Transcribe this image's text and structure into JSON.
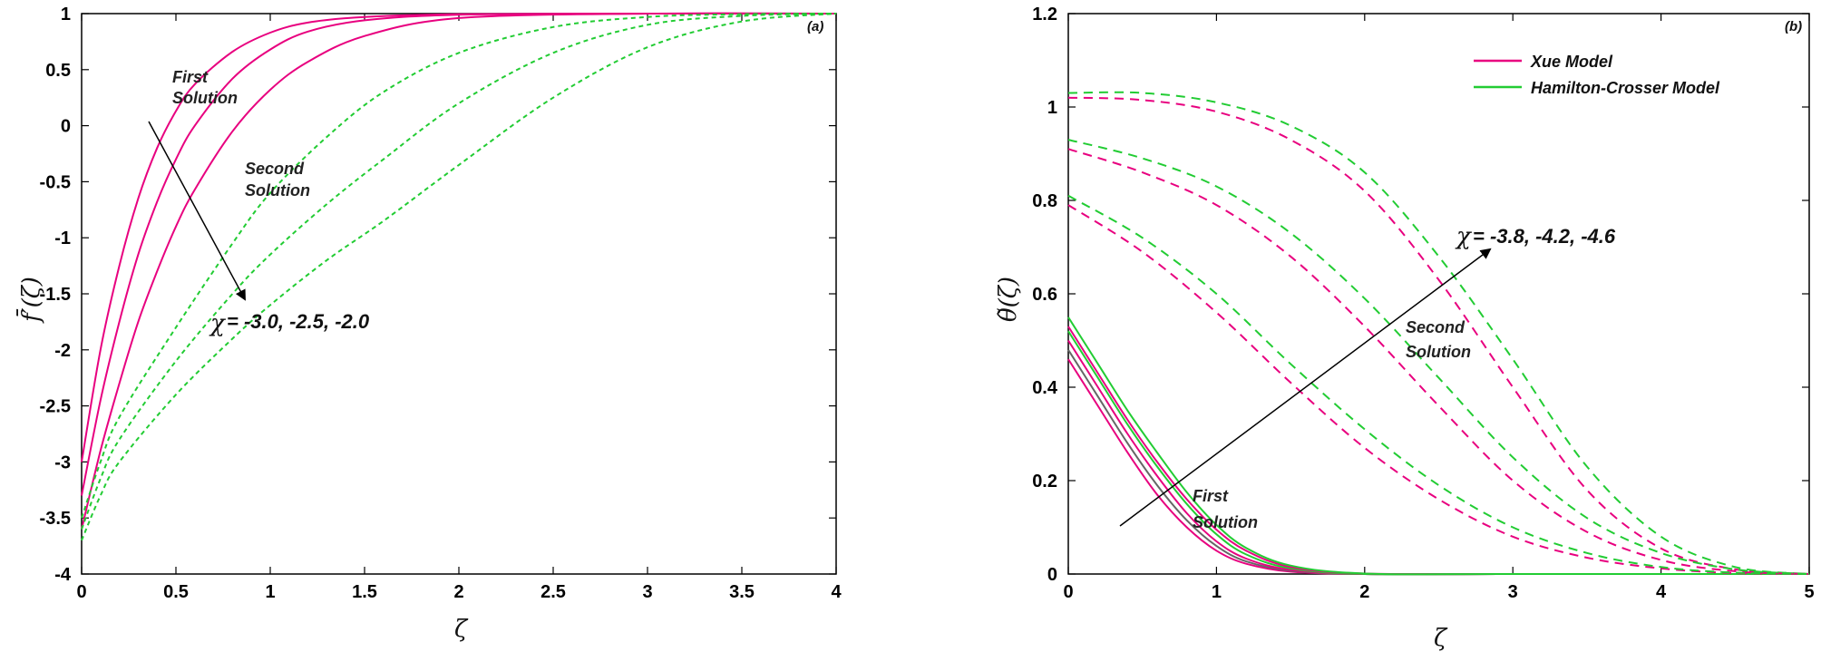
{
  "chart_data": [
    {
      "type": "line",
      "panel": "(a)",
      "xlabel": "ζ",
      "ylabel": "f̄′(ζ)",
      "xlim": [
        0,
        4
      ],
      "ylim": [
        -4,
        1
      ],
      "xticks": [
        "0",
        "0.5",
        "1",
        "1.5",
        "2",
        "2.5",
        "3",
        "3.5",
        "4"
      ],
      "yticks": [
        "-4",
        "-3.5",
        "-3",
        "-2.5",
        "-2",
        "-1.5",
        "-1",
        "-0.5",
        "0",
        "0.5",
        "1"
      ],
      "annotations": {
        "first_line1": "First",
        "first_line2": "Solution",
        "second_line1": "Second",
        "second_line2": "Solution",
        "chi_symbol": "χ",
        "chi_values": " = -3.0, -2.5, -2.0"
      },
      "colors": {
        "first": "#e8007f",
        "second": "#22cc33"
      },
      "series": [
        {
          "style": "solid",
          "color": "first",
          "x": [
            0,
            0.1,
            0.2,
            0.3,
            0.4,
            0.5,
            0.6,
            0.8,
            1.0,
            1.2,
            1.5,
            2.0,
            3.0,
            4.0
          ],
          "values": [
            -3.0,
            -2.0,
            -1.25,
            -0.65,
            -0.2,
            0.13,
            0.37,
            0.66,
            0.83,
            0.92,
            0.97,
            0.995,
            1.0,
            1.0
          ]
        },
        {
          "style": "solid",
          "color": "first",
          "x": [
            0,
            0.1,
            0.2,
            0.3,
            0.4,
            0.5,
            0.6,
            0.8,
            1.0,
            1.2,
            1.5,
            2.0,
            3.0,
            4.0
          ],
          "values": [
            -3.3,
            -2.45,
            -1.75,
            -1.15,
            -0.68,
            -0.3,
            0.0,
            0.42,
            0.68,
            0.84,
            0.94,
            0.99,
            1.0,
            1.0
          ]
        },
        {
          "style": "solid",
          "color": "first",
          "x": [
            0,
            0.1,
            0.2,
            0.3,
            0.4,
            0.5,
            0.6,
            0.8,
            1.0,
            1.2,
            1.5,
            2.0,
            3.0,
            4.0
          ],
          "values": [
            -3.6,
            -2.9,
            -2.3,
            -1.75,
            -1.3,
            -0.9,
            -0.57,
            -0.05,
            0.32,
            0.57,
            0.8,
            0.96,
            1.0,
            1.0
          ]
        },
        {
          "style": "dashed",
          "color": "second",
          "x": [
            0,
            0.1,
            0.2,
            0.5,
            0.8,
            1.0,
            1.3,
            1.6,
            2.0,
            2.5,
            3.0,
            3.5,
            4.0
          ],
          "values": [
            -3.5,
            -3.0,
            -2.6,
            -1.8,
            -1.05,
            -0.6,
            -0.1,
            0.3,
            0.65,
            0.88,
            0.97,
            0.995,
            1.0
          ]
        },
        {
          "style": "dashed",
          "color": "second",
          "x": [
            0,
            0.1,
            0.2,
            0.5,
            0.8,
            1.0,
            1.3,
            1.6,
            2.0,
            2.5,
            3.0,
            3.5,
            4.0
          ],
          "values": [
            -3.6,
            -3.15,
            -2.8,
            -2.1,
            -1.5,
            -1.15,
            -0.7,
            -0.3,
            0.2,
            0.65,
            0.9,
            0.98,
            1.0
          ]
        },
        {
          "style": "dashed",
          "color": "second",
          "x": [
            0,
            0.1,
            0.2,
            0.5,
            0.8,
            1.0,
            1.3,
            1.6,
            2.0,
            2.5,
            3.0,
            3.5,
            4.0
          ],
          "values": [
            -3.7,
            -3.3,
            -3.0,
            -2.4,
            -1.9,
            -1.6,
            -1.2,
            -0.85,
            -0.35,
            0.25,
            0.7,
            0.93,
            1.0
          ]
        }
      ]
    },
    {
      "type": "line",
      "panel": "(b)",
      "xlabel": "ζ",
      "ylabel": "θ̃(ζ)",
      "xlim": [
        0,
        5
      ],
      "ylim": [
        0,
        1.2
      ],
      "xticks": [
        "0",
        "1",
        "2",
        "3",
        "4",
        "5"
      ],
      "yticks": [
        "0",
        "0.2",
        "0.4",
        "0.6",
        "0.8",
        "1",
        "1.2"
      ],
      "legend": {
        "position": "top-right",
        "entries": [
          "Xue Model",
          "Hamilton-Crosser Model"
        ]
      },
      "annotations": {
        "first_line1": "First",
        "first_line2": "Solution",
        "second_line1": "Second",
        "second_line2": "Solution",
        "chi_symbol": "χ",
        "chi_values": " = -3.8, -4.2, -4.6"
      },
      "colors": {
        "xue": "#e8007f",
        "hamilton": "#22cc33",
        "grey": "#666666"
      },
      "series": [
        {
          "name": "Xue Model",
          "style": "solid",
          "color": "xue",
          "x": [
            0,
            0.2,
            0.4,
            0.6,
            0.8,
            1.0,
            1.2,
            1.5,
            2.0,
            3.0,
            5.0
          ],
          "values": [
            0.46,
            0.36,
            0.26,
            0.17,
            0.1,
            0.05,
            0.022,
            0.005,
            0.0,
            0.0,
            0.0
          ]
        },
        {
          "style": "solid",
          "color": "grey",
          "x": [
            0,
            0.2,
            0.4,
            0.6,
            0.8,
            1.0,
            1.2,
            1.5,
            2.0,
            3.0,
            5.0
          ],
          "values": [
            0.48,
            0.38,
            0.28,
            0.19,
            0.115,
            0.06,
            0.027,
            0.007,
            0.0,
            0.0,
            0.0
          ]
        },
        {
          "style": "solid",
          "color": "xue",
          "x": [
            0,
            0.2,
            0.4,
            0.6,
            0.8,
            1.0,
            1.2,
            1.5,
            2.0,
            3.0,
            5.0
          ],
          "values": [
            0.5,
            0.4,
            0.3,
            0.21,
            0.13,
            0.07,
            0.033,
            0.009,
            0.0,
            0.0,
            0.0
          ]
        },
        {
          "name": "Hamilton-Crosser Model",
          "style": "solid",
          "color": "hamilton",
          "x": [
            0,
            0.2,
            0.4,
            0.6,
            0.8,
            1.0,
            1.2,
            1.5,
            2.0,
            3.0,
            5.0
          ],
          "values": [
            0.52,
            0.42,
            0.32,
            0.23,
            0.15,
            0.085,
            0.042,
            0.012,
            0.0,
            0.0,
            0.0
          ]
        },
        {
          "style": "solid",
          "color": "xue",
          "x": [
            0,
            0.2,
            0.4,
            0.6,
            0.8,
            1.0,
            1.2,
            1.5,
            2.0,
            3.0,
            5.0
          ],
          "values": [
            0.53,
            0.43,
            0.33,
            0.24,
            0.16,
            0.095,
            0.05,
            0.015,
            0.001,
            0.0,
            0.0
          ]
        },
        {
          "style": "solid",
          "color": "hamilton",
          "x": [
            0,
            0.2,
            0.4,
            0.6,
            0.8,
            1.0,
            1.2,
            1.5,
            2.0,
            3.0,
            5.0
          ],
          "values": [
            0.55,
            0.45,
            0.35,
            0.26,
            0.175,
            0.105,
            0.056,
            0.018,
            0.001,
            0.0,
            0.0
          ]
        },
        {
          "style": "dashed",
          "color": "xue",
          "x": [
            0,
            0.5,
            1.0,
            1.5,
            2.0,
            2.5,
            3.0,
            3.5,
            4.0,
            4.5,
            5.0
          ],
          "values": [
            1.02,
            1.015,
            0.99,
            0.93,
            0.82,
            0.63,
            0.4,
            0.18,
            0.055,
            0.01,
            0.0
          ]
        },
        {
          "style": "dashed",
          "color": "hamilton",
          "x": [
            0,
            0.5,
            1.0,
            1.5,
            2.0,
            2.5,
            3.0,
            3.5,
            4.0,
            4.5,
            5.0
          ],
          "values": [
            1.03,
            1.03,
            1.01,
            0.96,
            0.86,
            0.68,
            0.46,
            0.23,
            0.08,
            0.015,
            0.0
          ]
        },
        {
          "style": "dashed",
          "color": "xue",
          "x": [
            0,
            0.5,
            1.0,
            1.5,
            2.0,
            2.5,
            3.0,
            3.5,
            4.0,
            4.5,
            5.0
          ],
          "values": [
            0.91,
            0.86,
            0.79,
            0.68,
            0.53,
            0.36,
            0.2,
            0.09,
            0.03,
            0.006,
            0.0
          ]
        },
        {
          "style": "dashed",
          "color": "hamilton",
          "x": [
            0,
            0.5,
            1.0,
            1.5,
            2.0,
            2.5,
            3.0,
            3.5,
            4.0,
            4.5,
            5.0
          ],
          "values": [
            0.93,
            0.89,
            0.83,
            0.73,
            0.59,
            0.42,
            0.25,
            0.12,
            0.045,
            0.01,
            0.0
          ]
        },
        {
          "style": "dashed",
          "color": "xue",
          "x": [
            0,
            0.5,
            1.0,
            1.5,
            2.0,
            2.5,
            3.0,
            3.5,
            4.0,
            4.5,
            5.0
          ],
          "values": [
            0.79,
            0.69,
            0.56,
            0.41,
            0.27,
            0.16,
            0.08,
            0.035,
            0.012,
            0.002,
            0.0
          ]
        },
        {
          "style": "dashed",
          "color": "hamilton",
          "x": [
            0,
            0.5,
            1.0,
            1.5,
            2.0,
            2.5,
            3.0,
            3.5,
            4.0,
            4.5,
            5.0
          ],
          "values": [
            0.81,
            0.72,
            0.6,
            0.45,
            0.31,
            0.19,
            0.1,
            0.045,
            0.015,
            0.003,
            0.0
          ]
        }
      ]
    }
  ]
}
